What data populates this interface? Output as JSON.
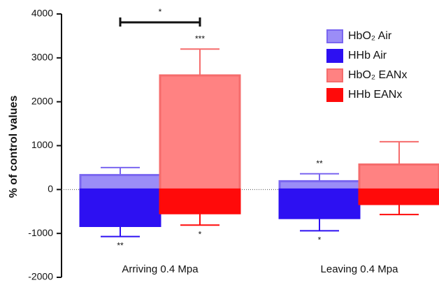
{
  "chart_data": {
    "type": "bar",
    "y_label": "% of control values",
    "categories": [
      "Arriving 0.4 Mpa",
      "Leaving 0.4 Mpa"
    ],
    "series": [
      {
        "name": "HbO₂ Air",
        "color": "#9b8df7",
        "stroke": "#7a66f0",
        "values": [
          330,
          190
        ],
        "errors": [
          170,
          170
        ],
        "significance": [
          null,
          "**"
        ]
      },
      {
        "name": "HHb Air",
        "color": "#2d10f2",
        "stroke": "#2d10f2",
        "values": [
          -830,
          -650
        ],
        "errors": [
          240,
          290
        ],
        "significance": [
          "**",
          "*"
        ]
      },
      {
        "name": "HbO₂ EANx",
        "color": "#ff8282",
        "stroke": "#f56c6c",
        "values": [
          2600,
          570
        ],
        "errors": [
          600,
          520
        ],
        "significance": [
          "***",
          null
        ]
      },
      {
        "name": "HHb EANx",
        "color": "#ff0a0a",
        "stroke": "#ff0a0a",
        "values": [
          -540,
          -330
        ],
        "errors": [
          270,
          240
        ],
        "significance": [
          "*",
          null
        ]
      }
    ],
    "comparison_label": "*",
    "ylim": [
      -2000,
      4000
    ],
    "yticks": [
      -2000,
      -1000,
      0,
      1000,
      2000,
      3000,
      4000
    ]
  }
}
